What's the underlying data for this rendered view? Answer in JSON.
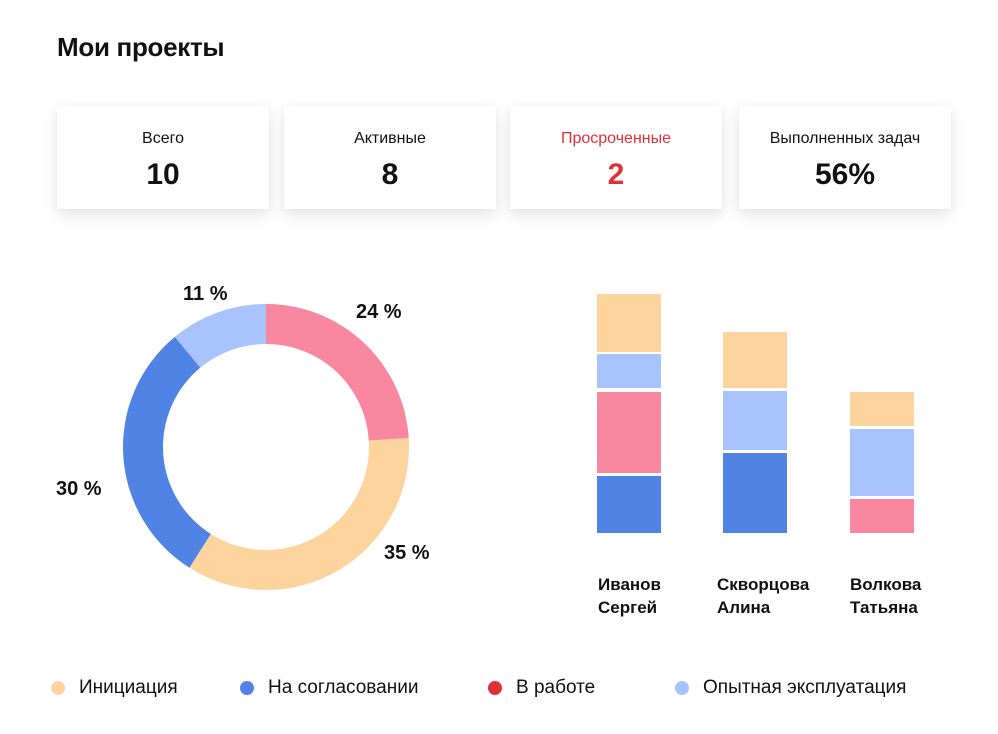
{
  "header": {
    "title": "Мои проекты"
  },
  "cards": [
    {
      "label": "Всего",
      "value": "10"
    },
    {
      "label": "Активные",
      "value": "8"
    },
    {
      "label": "Просроченные",
      "value": "2"
    },
    {
      "label": "Выполненных задач",
      "value": "56%"
    }
  ],
  "colors": {
    "initiation": "#fdd49e",
    "approval": "#5083e3",
    "in_work_chart": "#f9879f",
    "in_work_legend": "#e0303a",
    "trial": "#a8c3fd",
    "alert": "#e0303a"
  },
  "legend": [
    {
      "label": "Инициация",
      "color": "#fdd49e"
    },
    {
      "label": "На согласовании",
      "color": "#5083e3"
    },
    {
      "label": "В работе",
      "color": "#e0303a"
    },
    {
      "label": "Опытная эксплуатация",
      "color": "#a8c3fd"
    }
  ],
  "chart_data": [
    {
      "type": "pie",
      "subtype": "donut",
      "title": "",
      "categories": [
        "В работе",
        "Инициация",
        "На согласовании",
        "Опытная эксплуатация"
      ],
      "values": [
        24,
        35,
        30,
        11
      ],
      "labels": [
        "24 %",
        "35 %",
        "30 %",
        "11 %"
      ],
      "colors": [
        "#f9879f",
        "#fdd49e",
        "#5083e3",
        "#a8c3fd"
      ],
      "start_angle": "12 o'clock, clockwise",
      "legend_position": "bottom"
    },
    {
      "type": "bar",
      "stacked": true,
      "title": "",
      "categories": [
        "Иванов Сергей",
        "Скворцова Алина",
        "Волкова Татьяна"
      ],
      "series": [
        {
          "name": "На согласовании",
          "color": "#5083e3",
          "values": [
            57,
            80,
            0
          ]
        },
        {
          "name": "В работе",
          "color": "#f9879f",
          "values": [
            81,
            0,
            34
          ]
        },
        {
          "name": "Опытная эксплуатация",
          "color": "#a8c3fd",
          "values": [
            34,
            59,
            67
          ]
        },
        {
          "name": "Инициация",
          "color": "#fdd49e",
          "values": [
            58,
            56,
            34
          ]
        }
      ],
      "value_units": "relative pixel heights (no axis shown)",
      "grid": false,
      "axes_visible": false
    }
  ],
  "bars": {
    "names": [
      {
        "line1": "Иванов",
        "line2": "Сергей"
      },
      {
        "line1": "Скворцова",
        "line2": "Алина"
      },
      {
        "line1": "Волкова",
        "line2": "Татьяна"
      }
    ]
  }
}
